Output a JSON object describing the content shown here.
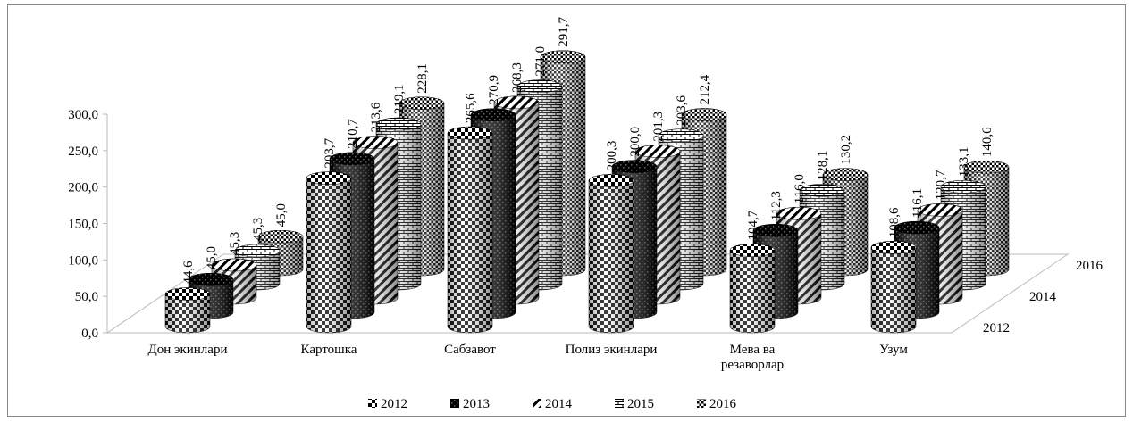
{
  "chart_data": {
    "type": "bar3d",
    "categories": [
      "Дон экинлари",
      "Картошка",
      "Сабзавот",
      "Полиз экинлари",
      "Мева ва резаворлар",
      "Узум"
    ],
    "series": [
      {
        "name": "2012",
        "color": "#000000",
        "values": [
          44.6,
          203.7,
          265.6,
          200.3,
          104.7,
          108.6
        ],
        "value_labels": [
          "44,6",
          "203,7",
          "265,6",
          "200,3",
          "104,7",
          "108,6"
        ]
      },
      {
        "name": "2013",
        "color": "#000000",
        "values": [
          45.0,
          210.7,
          270.9,
          200.0,
          112.3,
          116.1
        ],
        "value_labels": [
          "45,0",
          "210,7",
          "270,9",
          "200,0",
          "112,3",
          "116,1"
        ]
      },
      {
        "name": "2014",
        "color": "#000000",
        "values": [
          45.3,
          213.6,
          268.3,
          201.3,
          116.0,
          120.7
        ],
        "value_labels": [
          "45,3",
          "213,6",
          "268,3",
          "201,3",
          "116,0",
          "120,7"
        ]
      },
      {
        "name": "2015",
        "color": "#000000",
        "values": [
          45.3,
          219.1,
          271.0,
          203.6,
          128.1,
          133.1
        ],
        "value_labels": [
          "45,3",
          "219,1",
          "271,0",
          "203,6",
          "128,1",
          "133,1"
        ]
      },
      {
        "name": "2016",
        "color": "#000000",
        "values": [
          45.0,
          228.1,
          291.7,
          212.4,
          130.2,
          140.6
        ],
        "value_labels": [
          "45,0",
          "228,1",
          "291,7",
          "212,4",
          "130,2",
          "140,6"
        ]
      }
    ],
    "ylim": [
      0,
      300
    ],
    "yticks": [
      {
        "value": 0,
        "label": "0,0"
      },
      {
        "value": 50,
        "label": "50,0"
      },
      {
        "value": 100,
        "label": "100,0"
      },
      {
        "value": 150,
        "label": "150,0"
      },
      {
        "value": 200,
        "label": "200,0"
      },
      {
        "value": 250,
        "label": "250,0"
      },
      {
        "value": 300,
        "label": "300,0"
      }
    ],
    "depth_axis_series": [
      0,
      2,
      4
    ],
    "legend": "bottom"
  }
}
